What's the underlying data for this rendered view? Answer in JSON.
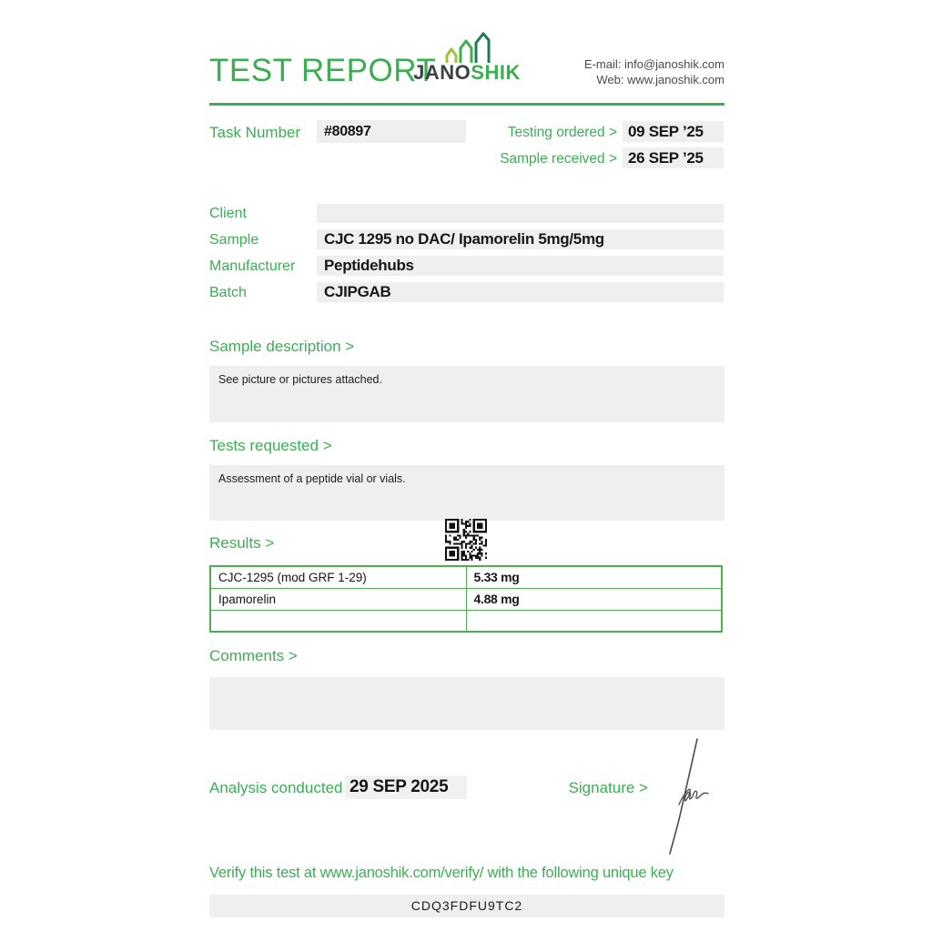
{
  "colors": {
    "green": "#3BAE53",
    "table_border": "#4CAF50",
    "box_gray": "#EFEFEF",
    "dark_text": "#161616",
    "contact_text": "#4A4A4A",
    "logo_dark": "#3A4442",
    "signature_ink": "#4A4A4A"
  },
  "header": {
    "title": "TEST REPORT",
    "logo": {
      "jano": "JANO",
      "shik": "SHIK",
      "icon": "growth-chart-icon"
    },
    "contact": {
      "email": "E-mail: info@janoshik.com",
      "web": "Web: www.janoshik.com"
    }
  },
  "task": {
    "label": "Task Number",
    "value": "#80897"
  },
  "dates": [
    {
      "label": "Testing ordered  >",
      "value": "09 SEP ’25"
    },
    {
      "label": "Sample received >",
      "value": "26 SEP ’25"
    }
  ],
  "fields": [
    {
      "label": "Client",
      "value": ""
    },
    {
      "label": "Sample",
      "value": "CJC 1295 no DAC/ Ipamorelin 5mg/5mg"
    },
    {
      "label": "Manufacturer",
      "value": "Peptidehubs"
    },
    {
      "label": "Batch",
      "value": "CJIPGAB"
    }
  ],
  "sample_description": {
    "heading": "Sample description >",
    "body": "See picture or pictures attached."
  },
  "tests_requested": {
    "heading": "Tests requested >",
    "body": "Assessment of a peptide vial or vials."
  },
  "results": {
    "heading": "Results >",
    "qr_icon": "qr-code",
    "rows": [
      {
        "analyte": "CJC-1295 (mod GRF 1-29)",
        "result": "5.33 mg"
      },
      {
        "analyte": "Ipamorelin",
        "result": "4.88 mg"
      },
      {
        "analyte": "",
        "result": ""
      }
    ]
  },
  "comments": {
    "heading": "Comments >",
    "body": ""
  },
  "analysis": {
    "label": "Analysis conducted >",
    "value": "29 SEP 2025"
  },
  "signature": {
    "label": "Signature >",
    "icon": "handwritten-signature"
  },
  "verify": {
    "text": "Verify this test at www.janoshik.com/verify/ with the following unique key",
    "key": "CDQ3FDFU9TC2"
  }
}
